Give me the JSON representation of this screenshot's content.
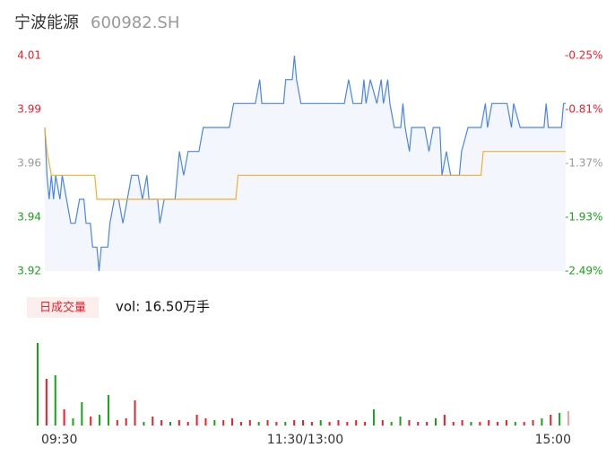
{
  "chart_data": {
    "type": "line",
    "title": "宁波能源",
    "subtitle": "600982.SH",
    "xlim": [
      0,
      240
    ],
    "xticks": [
      {
        "value": 0,
        "label": "09:30"
      },
      {
        "value": 120,
        "label": "11:30/13:00"
      },
      {
        "value": 240,
        "label": "15:00"
      }
    ],
    "ylim": [
      3.92,
      4.01
    ],
    "yticks": [
      3.92,
      {
        "value": 3.9425,
        "label": "3.94"
      },
      {
        "value": 3.965,
        "label": "3.96"
      },
      {
        "value": 3.9875,
        "label": "3.99"
      },
      4.01
    ],
    "ytick_colors": [
      "#1aa11a",
      "#1aa11a",
      "#999999",
      "#e8202a",
      "#e8202a"
    ],
    "y2lim": [
      -2.49,
      -0.25
    ],
    "y2ticks": [
      {
        "value": -2.49,
        "label": "-2.49%"
      },
      {
        "value": -1.93,
        "label": "-1.93%"
      },
      {
        "value": -1.37,
        "label": "-1.37%"
      },
      {
        "value": -0.81,
        "label": "-0.81%"
      },
      {
        "value": -0.25,
        "label": "-0.25%"
      }
    ],
    "series": [
      {
        "color": "#4a86e8",
        "x": [
          0,
          1,
          2,
          3,
          4,
          5,
          7,
          8,
          10,
          12,
          14,
          16,
          18,
          19,
          21,
          22,
          24,
          25,
          26,
          29,
          30,
          32,
          34,
          36,
          38,
          40,
          43,
          45,
          47,
          48,
          52,
          53,
          55,
          60,
          62,
          64,
          66,
          71,
          73,
          85,
          87,
          97,
          99,
          100,
          110,
          111,
          114,
          115,
          116,
          118,
          138,
          140,
          142,
          146,
          147,
          148,
          150,
          153,
          155,
          156,
          158,
          159,
          161,
          164,
          165,
          166,
          168,
          169,
          175,
          177,
          179,
          182,
          183,
          185,
          187,
          191,
          192,
          195,
          201,
          203,
          204,
          206,
          213,
          215,
          216,
          219,
          230,
          231,
          232,
          238,
          239,
          240
        ],
        "values": [
          3.98,
          3.96,
          3.95,
          3.96,
          3.95,
          3.96,
          3.95,
          3.96,
          3.95,
          3.94,
          3.94,
          3.95,
          3.95,
          3.94,
          3.94,
          3.93,
          3.93,
          3.92,
          3.93,
          3.93,
          3.94,
          3.95,
          3.95,
          3.94,
          3.95,
          3.96,
          3.96,
          3.95,
          3.96,
          3.95,
          3.95,
          3.94,
          3.95,
          3.95,
          3.97,
          3.96,
          3.97,
          3.97,
          3.98,
          3.98,
          3.99,
          3.99,
          4.0,
          3.99,
          3.99,
          4.0,
          4.0,
          4.01,
          4.0,
          3.99,
          3.99,
          4.0,
          3.99,
          3.99,
          4.0,
          3.99,
          4.0,
          3.99,
          4.0,
          3.99,
          4.0,
          3.99,
          3.98,
          3.98,
          3.99,
          3.98,
          3.97,
          3.98,
          3.98,
          3.97,
          3.98,
          3.98,
          3.96,
          3.97,
          3.96,
          3.96,
          3.97,
          3.98,
          3.98,
          3.99,
          3.98,
          3.99,
          3.99,
          3.98,
          3.99,
          3.98,
          3.98,
          3.99,
          3.98,
          3.98,
          3.99,
          3.99
        ]
      },
      {
        "color": "#f0b030",
        "x": [
          0,
          1,
          3,
          23,
          24,
          88,
          89,
          201,
          202,
          240
        ],
        "values": [
          3.98,
          3.97,
          3.96,
          3.96,
          3.95,
          3.95,
          3.96,
          3.96,
          3.97,
          3.97
        ]
      }
    ],
    "volume": {
      "label": "日成交量",
      "text": "vol: 16.50万手",
      "values": [
        92,
        52,
        56,
        18,
        8,
        26,
        10,
        12,
        34,
        6,
        8,
        28,
        4,
        10,
        6,
        4,
        6,
        4,
        12,
        8,
        6,
        6,
        8,
        4,
        6,
        4,
        6,
        4,
        4,
        6,
        6,
        4,
        6,
        4,
        6,
        4,
        6,
        4,
        18,
        6,
        4,
        10,
        6,
        4,
        4,
        8,
        12,
        4,
        6,
        4,
        4,
        6,
        4,
        6,
        4,
        4,
        6,
        8,
        12,
        14,
        16
      ],
      "colors": [
        "#1aa11a",
        "#e8202a",
        "#1aa11a",
        "#e8202a",
        "#1aa11a",
        "#1aa11a",
        "#e8202a",
        "#1aa11a",
        "#1aa11a",
        "#e8202a",
        "#e8202a",
        "#e8202a",
        "#1aa11a",
        "#e8202a",
        "#e8202a",
        "#1aa11a",
        "#e8202a",
        "#e8202a",
        "#e8202a",
        "#e8202a",
        "#1aa11a",
        "#e8202a",
        "#e8202a",
        "#e8202a",
        "#e8202a",
        "#1aa11a",
        "#e8202a",
        "#e8202a",
        "#1aa11a",
        "#e8202a",
        "#e8202a",
        "#e8202a",
        "#1aa11a",
        "#e8202a",
        "#e8202a",
        "#e8202a",
        "#e8202a",
        "#e8202a",
        "#1aa11a",
        "#e8202a",
        "#1aa11a",
        "#1aa11a",
        "#e8202a",
        "#e8202a",
        "#e8202a",
        "#1aa11a",
        "#e8202a",
        "#e8202a",
        "#e8202a",
        "#1aa11a",
        "#e8202a",
        "#e8202a",
        "#e8202a",
        "#e8202a",
        "#1aa11a",
        "#e8202a",
        "#e8202a",
        "#1aa11a",
        "#e8202a",
        "#1aa11a",
        "#f5a0a0"
      ]
    }
  }
}
